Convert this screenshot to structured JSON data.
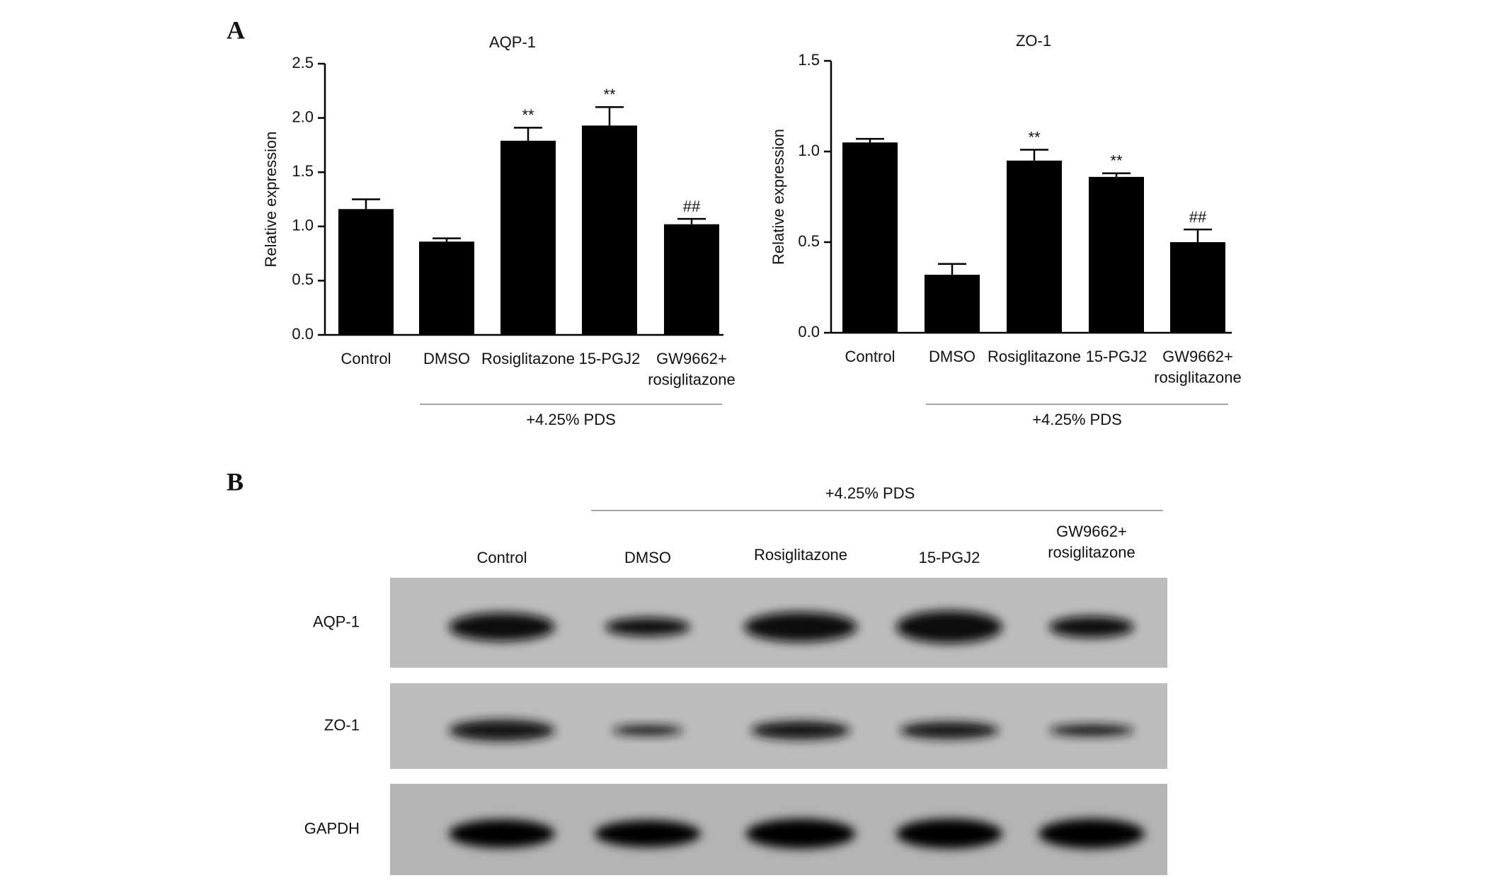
{
  "panel_labels": [
    "A",
    "B"
  ],
  "chart_data": [
    {
      "type": "bar",
      "title": "AQP-1",
      "y_label": "Relative expression",
      "categories": [
        "Control",
        "DMSO",
        "Rosiglitazone",
        "15-PGJ2",
        "GW9662+\nrosiglitazone"
      ],
      "values": [
        1.16,
        0.86,
        1.79,
        1.93,
        1.02
      ],
      "errors": [
        0.09,
        0.03,
        0.12,
        0.17,
        0.05
      ],
      "annotations": [
        null,
        null,
        "**",
        "**",
        "##"
      ],
      "group_label": "+4.25% PDS",
      "color": "#000000",
      "ylim": [
        0,
        2.5
      ],
      "yticks": [
        {
          "value": 0,
          "label": "0.0"
        },
        0.5,
        {
          "value": 1,
          "label": "1.0"
        },
        1.5,
        {
          "value": 2,
          "label": "2.0"
        },
        2.5
      ]
    },
    {
      "type": "bar",
      "title": "ZO-1",
      "y_label": "Relative expression",
      "categories": [
        "Control",
        "DMSO",
        "Rosiglitazone",
        "15-PGJ2",
        "GW9662+\nrosiglitazone"
      ],
      "values": [
        1.05,
        0.32,
        0.95,
        0.86,
        0.5
      ],
      "errors": [
        0.02,
        0.06,
        0.06,
        0.02,
        0.07
      ],
      "annotations": [
        null,
        null,
        "**",
        "**",
        "##"
      ],
      "group_label": "+4.25% PDS",
      "color": "#000000",
      "ylim": [
        0,
        1.5
      ],
      "yticks": [
        {
          "value": 0,
          "label": "0.0"
        },
        0.5,
        {
          "value": 1,
          "label": "1.0"
        },
        1.5
      ]
    }
  ],
  "blot": {
    "group_label": "+4.25% PDS",
    "lanes": [
      "Control",
      "DMSO",
      "Rosiglitazone",
      "15-PGJ2",
      "GW9662+\nrosiglitazone"
    ],
    "rows": [
      "AQP-1",
      "ZO-1",
      "GAPDH"
    ]
  }
}
